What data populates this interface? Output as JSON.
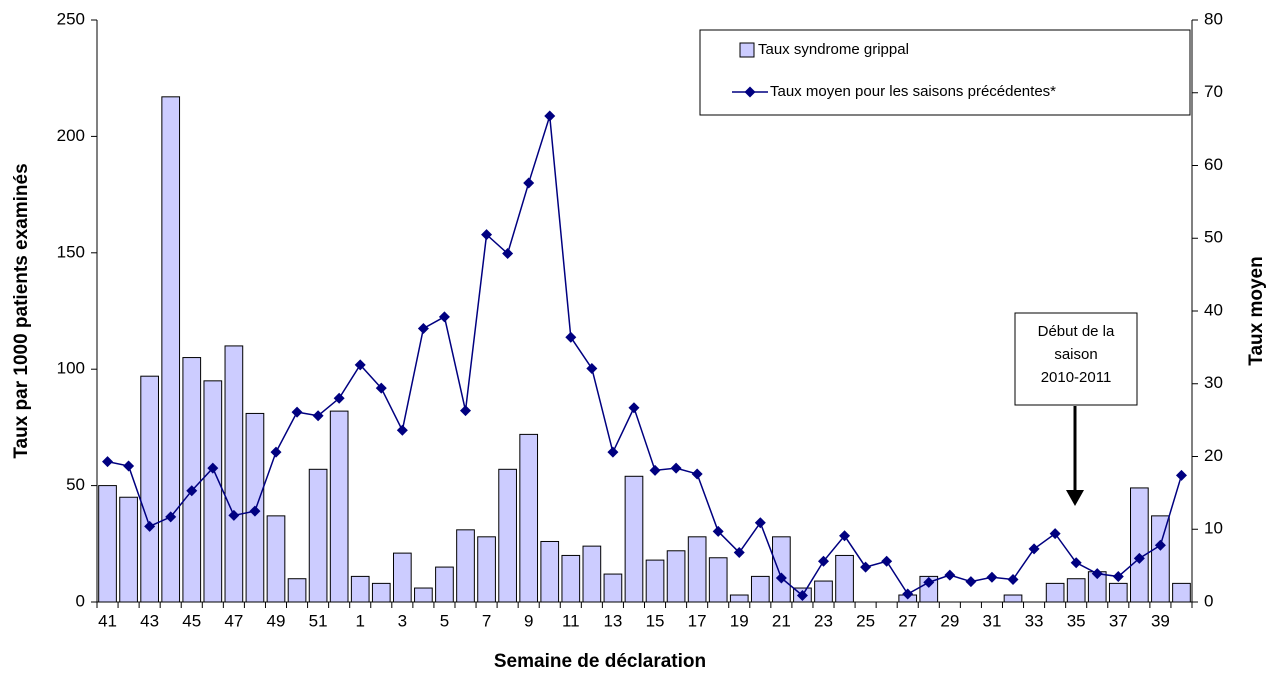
{
  "chart_data": {
    "type": "bar",
    "x_label": "Semaine de déclaration",
    "y_label": "Taux par 1000 patients examinés",
    "y2_label": "Taux moyen",
    "categories": [
      "41",
      null,
      "43",
      null,
      "45",
      null,
      "47",
      null,
      "49",
      null,
      "51",
      null,
      "1",
      null,
      "3",
      null,
      "5",
      null,
      "7",
      null,
      "9",
      null,
      "11",
      null,
      "13",
      null,
      "15",
      null,
      "17",
      null,
      "19",
      null,
      "21",
      null,
      "23",
      null,
      "25",
      null,
      "27",
      null,
      "29",
      null,
      "31",
      null,
      "33",
      null,
      "35",
      null,
      "37",
      null,
      "39",
      null
    ],
    "series": [
      {
        "name": "Taux syndrome grippal",
        "type": "bar",
        "color": "#ccccff",
        "values": [
          50,
          45,
          97,
          217,
          105,
          95,
          110,
          81,
          37,
          10,
          57,
          82,
          11,
          8,
          21,
          6,
          15,
          31,
          28,
          57,
          72,
          26,
          20,
          24,
          12,
          54,
          18,
          22,
          28,
          19,
          3,
          11,
          28,
          6,
          9,
          20,
          0,
          0,
          3,
          11,
          0,
          0,
          0,
          3,
          0,
          8,
          10,
          13,
          8,
          49,
          37,
          8
        ]
      },
      {
        "name": "Taux moyen pour les saisons précédentes*",
        "type": "line",
        "axis": "y2",
        "color": "#000080",
        "values": [
          19.3,
          18.7,
          10.4,
          11.7,
          15.3,
          18.4,
          11.9,
          12.5,
          20.6,
          26.1,
          25.6,
          28,
          32.6,
          29.4,
          23.6,
          37.6,
          39.2,
          26.3,
          50.5,
          47.9,
          57.6,
          66.8,
          36.4,
          32.1,
          20.6,
          26.7,
          18.1,
          18.4,
          17.6,
          9.7,
          6.8,
          10.9,
          3.3,
          0.9,
          5.6,
          9.1,
          4.8,
          5.6,
          1.1,
          2.7,
          3.7,
          2.8,
          3.4,
          3.1,
          7.3,
          9.4,
          5.4,
          3.9,
          3.5,
          6.0,
          7.8,
          17.4
        ]
      }
    ],
    "ylim": [
      0,
      250
    ],
    "yticks": [
      0,
      50,
      100,
      150,
      200,
      250
    ],
    "y2lim": [
      0,
      80
    ],
    "y2ticks": [
      0,
      10,
      20,
      30,
      40,
      50,
      60,
      70,
      80
    ],
    "grid": false,
    "legend": "top-right",
    "annotation": [
      "Début de la",
      "saison",
      "2010-2011"
    ]
  }
}
